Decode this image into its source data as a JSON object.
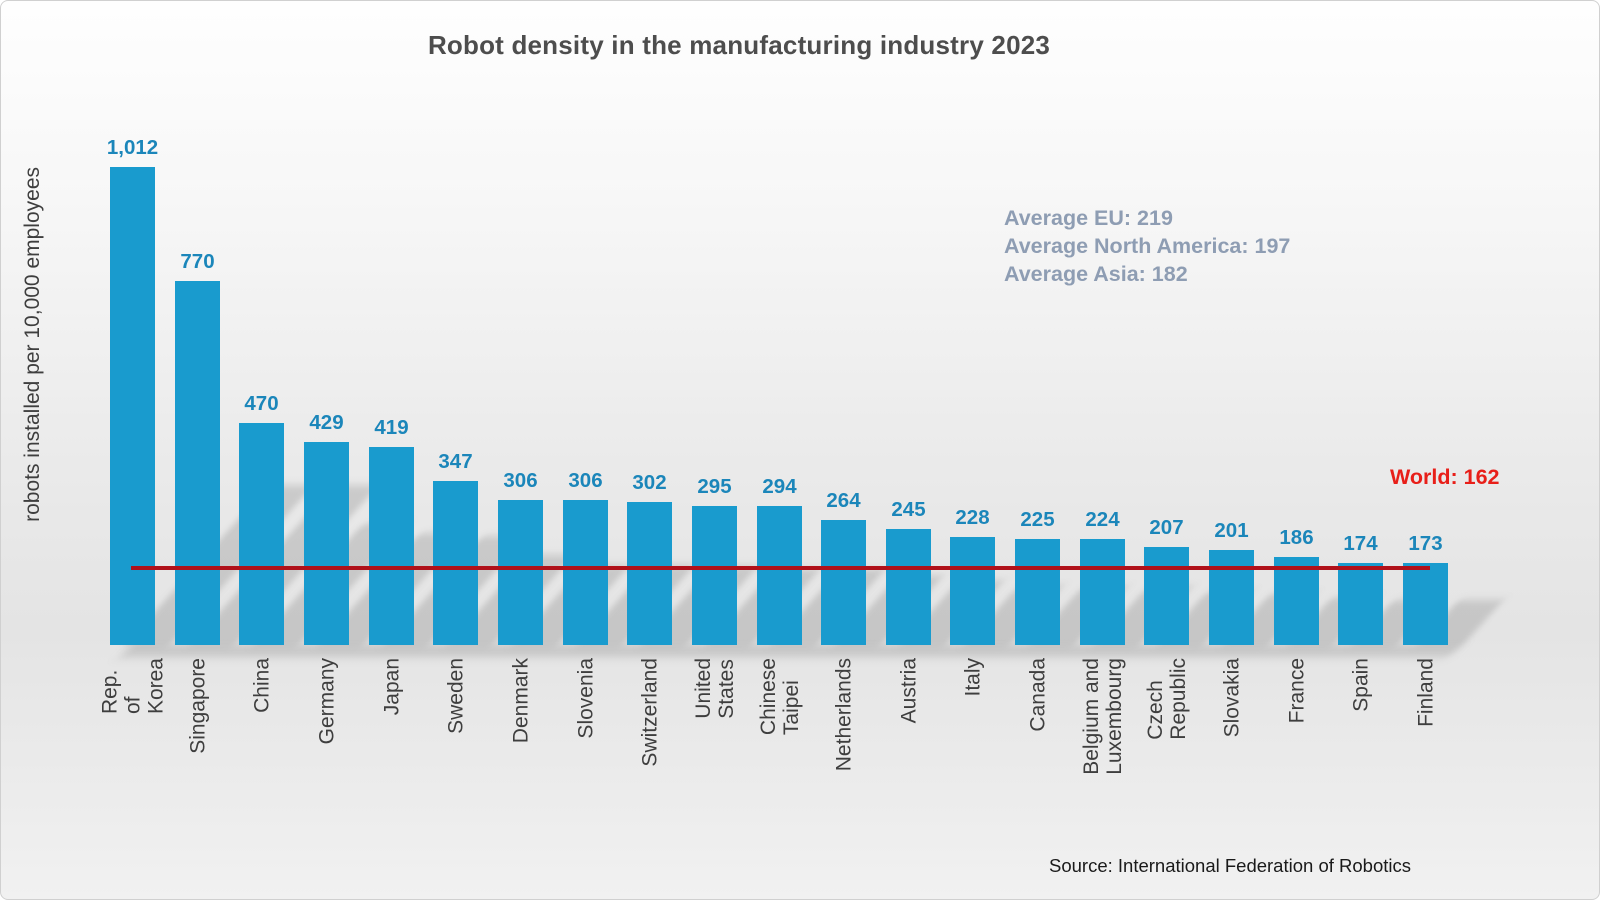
{
  "title": "Robot density in the manufacturing industry 2023",
  "ylabel": "robots installed per 10,000 employees",
  "source": "Source: International Federation of Robotics",
  "annotations": {
    "avg_eu": "Average EU: 219",
    "avg_north_america": "Average North America: 197",
    "avg_asia": "Average Asia: 182",
    "world": "World: 162"
  },
  "colors": {
    "bar": "#199bce",
    "value_label": "#1b86ba",
    "world_line": "#b0111a",
    "world_label_text": "#e81f19",
    "average_text": "#8e9db3",
    "title_text": "#4d4d4d",
    "axis_text": "#3e3e3e"
  },
  "chart_data": {
    "type": "bar",
    "title": "Robot density in the manufacturing industry 2023",
    "ylabel": "robots installed per 10,000 employees",
    "xlabel": "",
    "categories": [
      "Rep. of Korea",
      "Singapore",
      "China",
      "Germany",
      "Japan",
      "Sweden",
      "Denmark",
      "Slovenia",
      "Switzerland",
      "United States",
      "Chinese Taipei",
      "Netherlands",
      "Austria",
      "Italy",
      "Canada",
      "Belgium and\nLuxembourg",
      "Czech Republic",
      "Slovakia",
      "France",
      "Spain",
      "Finland"
    ],
    "values": [
      1012,
      770,
      470,
      429,
      419,
      347,
      306,
      306,
      302,
      295,
      294,
      264,
      245,
      228,
      225,
      224,
      207,
      201,
      186,
      174,
      173
    ],
    "value_labels": [
      "1,012",
      "770",
      "470",
      "429",
      "419",
      "347",
      "306",
      "306",
      "302",
      "295",
      "294",
      "264",
      "245",
      "228",
      "225",
      "224",
      "207",
      "201",
      "186",
      "174",
      "173"
    ],
    "reference_lines": [
      {
        "label": "World: 162",
        "value": 162
      }
    ],
    "text_annotations": [
      "Average EU: 219",
      "Average North America: 197",
      "Average Asia: 182"
    ],
    "ylim": [
      0,
      1100
    ],
    "grid": false,
    "legend": false,
    "bar_color": "#199bce",
    "source": "Source: International Federation of Robotics"
  }
}
